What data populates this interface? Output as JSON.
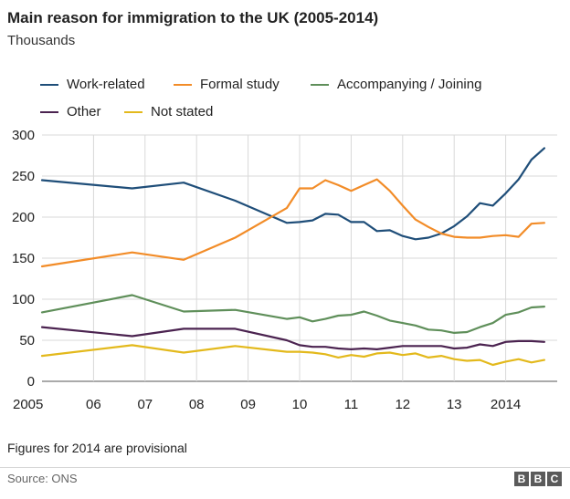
{
  "title": "Main reason for immigration to the UK (2005-2014)",
  "subtitle": "Thousands",
  "note": "Figures for 2014 are provisional",
  "source": "Source: ONS",
  "logo": {
    "letters": [
      "B",
      "B",
      "C"
    ]
  },
  "chart_data": {
    "type": "line",
    "title": "Main reason for immigration to the UK (2005-2014)",
    "ylabel": "Thousands",
    "ylim": [
      0,
      300
    ],
    "yticks": [
      0,
      50,
      100,
      150,
      200,
      250,
      300
    ],
    "xlim": [
      2005,
      2015
    ],
    "xticks": [
      {
        "value": 2005,
        "label": "2005"
      },
      {
        "value": 2006,
        "label": "06"
      },
      {
        "value": 2007,
        "label": "07"
      },
      {
        "value": 2008,
        "label": "08"
      },
      {
        "value": 2009,
        "label": "09"
      },
      {
        "value": 2010,
        "label": "10"
      },
      {
        "value": 2011,
        "label": "11"
      },
      {
        "value": 2012,
        "label": "12"
      },
      {
        "value": 2013,
        "label": "13"
      },
      {
        "value": 2014,
        "label": "2014"
      }
    ],
    "grid": true,
    "legend_position": "top",
    "series": [
      {
        "name": "Work-related",
        "color": "#1f4e79",
        "points": [
          [
            2005.0,
            245
          ],
          [
            2006.75,
            235
          ],
          [
            2007.75,
            242
          ],
          [
            2008.75,
            220
          ],
          [
            2009.75,
            193
          ],
          [
            2010.0,
            194
          ],
          [
            2010.25,
            196
          ],
          [
            2010.5,
            204
          ],
          [
            2010.75,
            203
          ],
          [
            2011.0,
            194
          ],
          [
            2011.25,
            194
          ],
          [
            2011.5,
            183
          ],
          [
            2011.75,
            184
          ],
          [
            2012.0,
            177
          ],
          [
            2012.25,
            173
          ],
          [
            2012.5,
            175
          ],
          [
            2012.75,
            180
          ],
          [
            2013.0,
            189
          ],
          [
            2013.25,
            201
          ],
          [
            2013.5,
            217
          ],
          [
            2013.75,
            214
          ],
          [
            2014.0,
            229
          ],
          [
            2014.25,
            246
          ],
          [
            2014.5,
            270
          ],
          [
            2014.75,
            284
          ]
        ]
      },
      {
        "name": "Formal study",
        "color": "#f28c28",
        "points": [
          [
            2005.0,
            140
          ],
          [
            2006.75,
            157
          ],
          [
            2007.75,
            148
          ],
          [
            2008.75,
            175
          ],
          [
            2009.75,
            211
          ],
          [
            2010.0,
            235
          ],
          [
            2010.25,
            235
          ],
          [
            2010.5,
            245
          ],
          [
            2010.75,
            239
          ],
          [
            2011.0,
            232
          ],
          [
            2011.25,
            239
          ],
          [
            2011.5,
            246
          ],
          [
            2011.75,
            232
          ],
          [
            2012.0,
            214
          ],
          [
            2012.25,
            197
          ],
          [
            2012.5,
            188
          ],
          [
            2012.75,
            180
          ],
          [
            2013.0,
            176
          ],
          [
            2013.25,
            175
          ],
          [
            2013.5,
            175
          ],
          [
            2013.75,
            177
          ],
          [
            2014.0,
            178
          ],
          [
            2014.25,
            176
          ],
          [
            2014.5,
            192
          ],
          [
            2014.75,
            193
          ]
        ]
      },
      {
        "name": "Accompanying / Joining",
        "color": "#5f8f5a",
        "points": [
          [
            2005.0,
            84
          ],
          [
            2006.75,
            105
          ],
          [
            2007.75,
            85
          ],
          [
            2008.75,
            87
          ],
          [
            2009.75,
            76
          ],
          [
            2010.0,
            78
          ],
          [
            2010.25,
            73
          ],
          [
            2010.5,
            76
          ],
          [
            2010.75,
            80
          ],
          [
            2011.0,
            81
          ],
          [
            2011.25,
            85
          ],
          [
            2011.5,
            80
          ],
          [
            2011.75,
            74
          ],
          [
            2012.0,
            71
          ],
          [
            2012.25,
            68
          ],
          [
            2012.5,
            63
          ],
          [
            2012.75,
            62
          ],
          [
            2013.0,
            59
          ],
          [
            2013.25,
            60
          ],
          [
            2013.5,
            66
          ],
          [
            2013.75,
            71
          ],
          [
            2014.0,
            81
          ],
          [
            2014.25,
            84
          ],
          [
            2014.5,
            90
          ],
          [
            2014.75,
            91
          ]
        ]
      },
      {
        "name": "Other",
        "color": "#4b2350",
        "points": [
          [
            2005.0,
            66
          ],
          [
            2006.75,
            55
          ],
          [
            2007.75,
            64
          ],
          [
            2008.75,
            64
          ],
          [
            2009.75,
            50
          ],
          [
            2010.0,
            44
          ],
          [
            2010.25,
            42
          ],
          [
            2010.5,
            42
          ],
          [
            2010.75,
            40
          ],
          [
            2011.0,
            39
          ],
          [
            2011.25,
            40
          ],
          [
            2011.5,
            39
          ],
          [
            2011.75,
            41
          ],
          [
            2012.0,
            43
          ],
          [
            2012.25,
            43
          ],
          [
            2012.5,
            43
          ],
          [
            2012.75,
            43
          ],
          [
            2013.0,
            40
          ],
          [
            2013.25,
            41
          ],
          [
            2013.5,
            45
          ],
          [
            2013.75,
            43
          ],
          [
            2014.0,
            48
          ],
          [
            2014.25,
            49
          ],
          [
            2014.5,
            49
          ],
          [
            2014.75,
            48
          ]
        ]
      },
      {
        "name": "Not stated",
        "color": "#e3b91c",
        "points": [
          [
            2005.0,
            31
          ],
          [
            2006.75,
            44
          ],
          [
            2007.75,
            35
          ],
          [
            2008.75,
            43
          ],
          [
            2009.75,
            36
          ],
          [
            2010.0,
            36
          ],
          [
            2010.25,
            35
          ],
          [
            2010.5,
            33
          ],
          [
            2010.75,
            29
          ],
          [
            2011.0,
            32
          ],
          [
            2011.25,
            30
          ],
          [
            2011.5,
            34
          ],
          [
            2011.75,
            35
          ],
          [
            2012.0,
            32
          ],
          [
            2012.25,
            34
          ],
          [
            2012.5,
            29
          ],
          [
            2012.75,
            31
          ],
          [
            2013.0,
            27
          ],
          [
            2013.25,
            25
          ],
          [
            2013.5,
            26
          ],
          [
            2013.75,
            20
          ],
          [
            2014.0,
            24
          ],
          [
            2014.25,
            27
          ],
          [
            2014.5,
            23
          ],
          [
            2014.75,
            26
          ]
        ]
      }
    ]
  }
}
